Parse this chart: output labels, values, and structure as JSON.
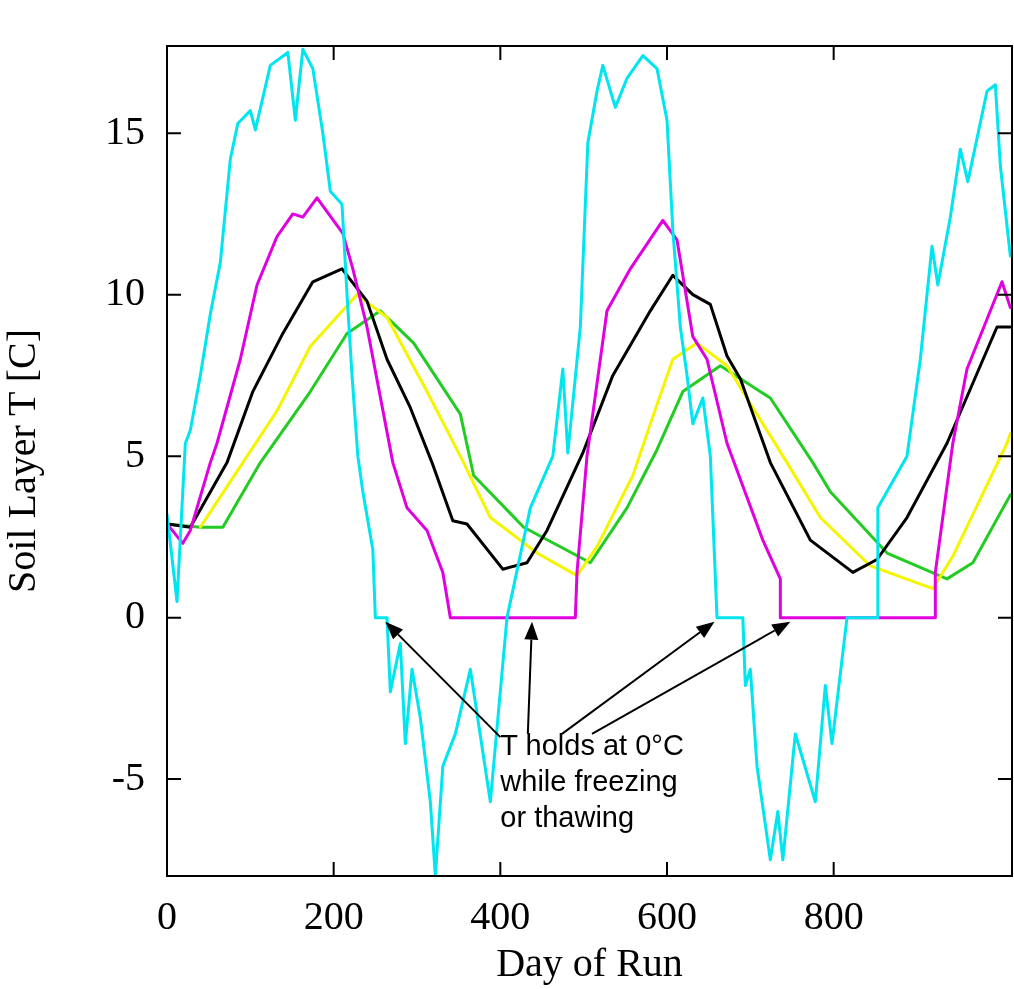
{
  "chart_data": {
    "type": "line",
    "xlabel": "Day of Run",
    "ylabel": "Soil Layer T [C]",
    "xlim": [
      0,
      1014
    ],
    "ylim": [
      -8,
      17.7
    ],
    "xticks": [
      0,
      200,
      400,
      600,
      800
    ],
    "yticks": [
      -5,
      0,
      5,
      10,
      15
    ],
    "marker": "none",
    "line_style": "solid",
    "annotations": [
      "T holds at 0°C\nwhile freezing\nor thawing"
    ],
    "series": [
      {
        "color": "#00e5ee",
        "x": [
          0,
          12,
          22,
          28,
          40,
          52,
          64,
          76,
          85,
          100,
          106,
          124,
          145,
          154,
          163,
          175,
          187,
          196,
          210,
          216,
          222,
          229,
          235,
          247,
          250,
          264,
          268,
          280,
          286,
          294,
          304,
          316,
          322,
          331,
          346,
          364,
          388,
          408,
          436,
          463,
          475,
          481,
          496,
          505,
          516,
          523,
          538,
          552,
          571,
          588,
          600,
          607,
          616,
          624,
          631,
          643,
          652,
          660,
          691,
          694,
          700,
          708,
          724,
          733,
          739,
          754,
          778,
          790,
          798,
          816,
          853,
          853,
          888,
          904,
          918,
          925,
          940,
          952,
          961,
          984,
          994,
          1000,
          1012
        ],
        "values": [
          3.2,
          0.5,
          5.4,
          5.8,
          7.5,
          9.4,
          11.0,
          14.2,
          15.3,
          15.7,
          15.1,
          17.1,
          17.5,
          15.4,
          17.6,
          17.0,
          15.0,
          13.2,
          12.8,
          10.0,
          7.5,
          5.0,
          3.9,
          2.1,
          0,
          0,
          -2.3,
          -0.8,
          -3.9,
          -1.6,
          -3.1,
          -5.7,
          -8.0,
          -4.6,
          -3.6,
          -1.6,
          -5.7,
          0,
          3.4,
          5.0,
          7.7,
          5.1,
          9.0,
          14.7,
          16.3,
          17.1,
          15.8,
          16.7,
          17.4,
          17.0,
          15.4,
          12.0,
          9.0,
          7.5,
          6.0,
          6.8,
          5.0,
          0,
          0,
          -2.1,
          -1.6,
          -4.6,
          -7.5,
          -6.0,
          -7.5,
          -3.6,
          -5.7,
          -2.1,
          -3.9,
          0,
          0,
          3.4,
          5.0,
          8.0,
          11.5,
          10.3,
          12.4,
          14.5,
          13.5,
          16.3,
          16.5,
          14.0,
          11.2
        ]
      },
      {
        "color": "#e000e0",
        "x": [
          0,
          19,
          28,
          52,
          60,
          88,
          108,
          132,
          151,
          163,
          180,
          211,
          223,
          240,
          271,
          288,
          312,
          331,
          340,
          490,
          492,
          504,
          528,
          556,
          595,
          612,
          631,
          648,
          672,
          715,
          736,
          736,
          922,
          922,
          943,
          960,
          1002,
          1012
        ],
        "values": [
          2.9,
          2.3,
          2.7,
          4.8,
          5.4,
          8.0,
          10.3,
          11.8,
          12.5,
          12.4,
          13.0,
          11.9,
          10.8,
          9.0,
          4.8,
          3.4,
          2.7,
          1.4,
          0,
          0,
          1.4,
          5.0,
          9.5,
          10.8,
          12.3,
          11.7,
          8.7,
          8.0,
          5.4,
          2.4,
          1.2,
          0,
          0,
          1.4,
          5.4,
          7.7,
          10.4,
          9.6
        ]
      },
      {
        "color": "#000000",
        "x": [
          0,
          28,
          72,
          103,
          139,
          175,
          210,
          240,
          264,
          292,
          318,
          343,
          360,
          403,
          432,
          456,
          499,
          535,
          580,
          607,
          631,
          652,
          672,
          688,
          724,
          772,
          823,
          852,
          888,
          936,
          996,
          1012
        ],
        "values": [
          2.9,
          2.8,
          4.8,
          7.0,
          8.8,
          10.4,
          10.8,
          9.8,
          8.0,
          6.5,
          4.8,
          3.0,
          2.9,
          1.5,
          1.7,
          2.7,
          5.1,
          7.5,
          9.5,
          10.6,
          10.0,
          9.7,
          8.1,
          7.4,
          4.8,
          2.4,
          1.4,
          1.8,
          3.1,
          5.4,
          9.0,
          9.0
        ]
      },
      {
        "color": "#f5f500",
        "x": [
          40,
          91,
          132,
          172,
          228,
          264,
          312,
          352,
          388,
          444,
          492,
          516,
          559,
          580,
          607,
          636,
          672,
          703,
          744,
          784,
          844,
          919,
          943,
          1008,
          1012
        ],
        "values": [
          2.8,
          4.8,
          6.4,
          8.4,
          10.0,
          9.3,
          7.0,
          5.0,
          3.1,
          2.0,
          1.3,
          2.2,
          4.4,
          6.0,
          8.0,
          8.5,
          7.8,
          6.5,
          4.8,
          3.1,
          1.6,
          0.9,
          1.9,
          5.4,
          5.7
        ]
      },
      {
        "color": "#22cc22",
        "x": [
          0,
          40,
          67,
          112,
          172,
          216,
          256,
          296,
          352,
          368,
          428,
          508,
          552,
          588,
          619,
          664,
          724,
          775,
          796,
          864,
          936,
          967,
          1012
        ],
        "values": [
          2.9,
          2.8,
          2.8,
          4.8,
          7.0,
          8.8,
          9.5,
          8.5,
          6.3,
          4.4,
          2.8,
          1.7,
          3.4,
          5.2,
          7.0,
          7.8,
          6.8,
          4.8,
          3.9,
          2.0,
          1.2,
          1.7,
          3.8
        ]
      }
    ]
  }
}
